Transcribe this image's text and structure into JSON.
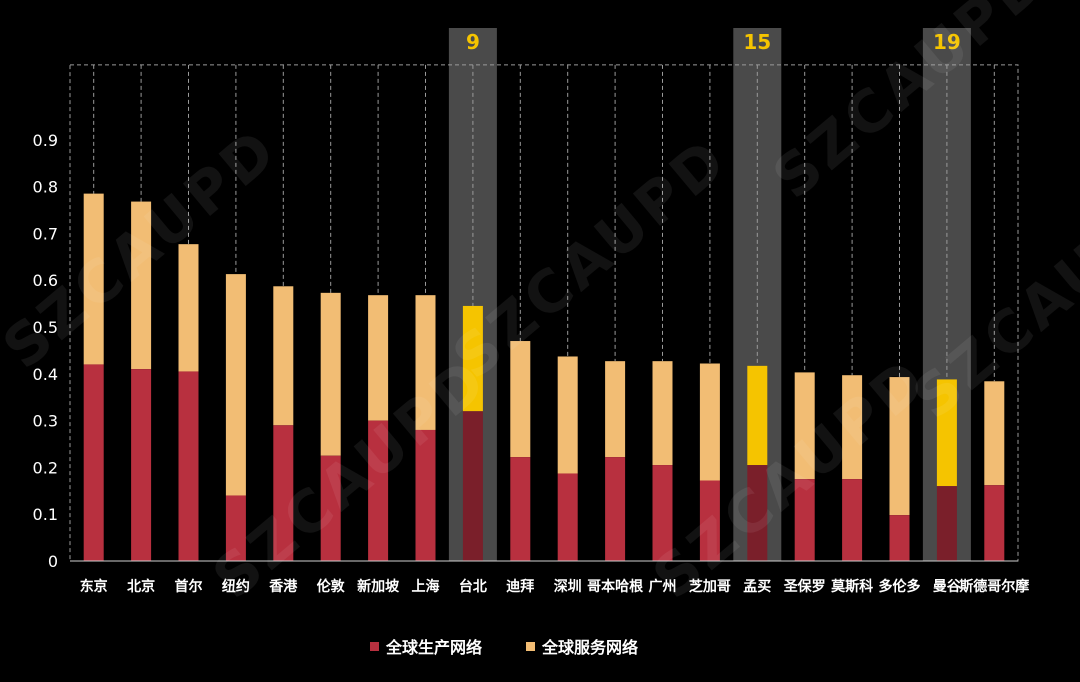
{
  "chart_data": {
    "type": "bar",
    "stacked": true,
    "categories": [
      "东京",
      "北京",
      "首尔",
      "纽约",
      "香港",
      "伦敦",
      "新加坡",
      "上海",
      "台北",
      "迪拜",
      "深圳",
      "哥本哈根",
      "广州",
      "芝加哥",
      "孟买",
      "圣保罗",
      "莫斯科",
      "多伦多",
      "曼谷",
      "斯德哥尔摩"
    ],
    "series": [
      {
        "name": "全球生产网络",
        "color": "#b8303f",
        "values": [
          0.42,
          0.41,
          0.405,
          0.14,
          0.29,
          0.225,
          0.3,
          0.28,
          0.32,
          0.222,
          0.187,
          0.222,
          0.205,
          0.172,
          0.205,
          0.175,
          0.175,
          0.098,
          0.16,
          0.162
        ]
      },
      {
        "name": "全球服务网络",
        "color": "#f2bd74",
        "values": [
          0.365,
          0.358,
          0.272,
          0.473,
          0.297,
          0.348,
          0.268,
          0.288,
          0.225,
          0.248,
          0.25,
          0.205,
          0.222,
          0.25,
          0.212,
          0.228,
          0.222,
          0.295,
          0.228,
          0.222
        ]
      }
    ],
    "highlights": [
      {
        "category": "台北",
        "rank": "9"
      },
      {
        "category": "孟买",
        "rank": "15"
      },
      {
        "category": "曼谷",
        "rank": "19"
      }
    ],
    "highlight_colors": {
      "production": "#7a1f2a",
      "service": "#f5c400",
      "band": "#4a4a4a"
    },
    "yticks": [
      "0",
      "0.1",
      "0.2",
      "0.3",
      "0.4",
      "0.5",
      "0.6",
      "0.7",
      "0.8",
      "0.9"
    ],
    "ylim": [
      0,
      1.06
    ],
    "grid": false,
    "legend_position": "bottom"
  },
  "legend": [
    {
      "label": "全球生产网络",
      "color": "#b8303f"
    },
    {
      "label": "全球服务网络",
      "color": "#f2bd74"
    }
  ],
  "watermark": "SZCAUPD"
}
